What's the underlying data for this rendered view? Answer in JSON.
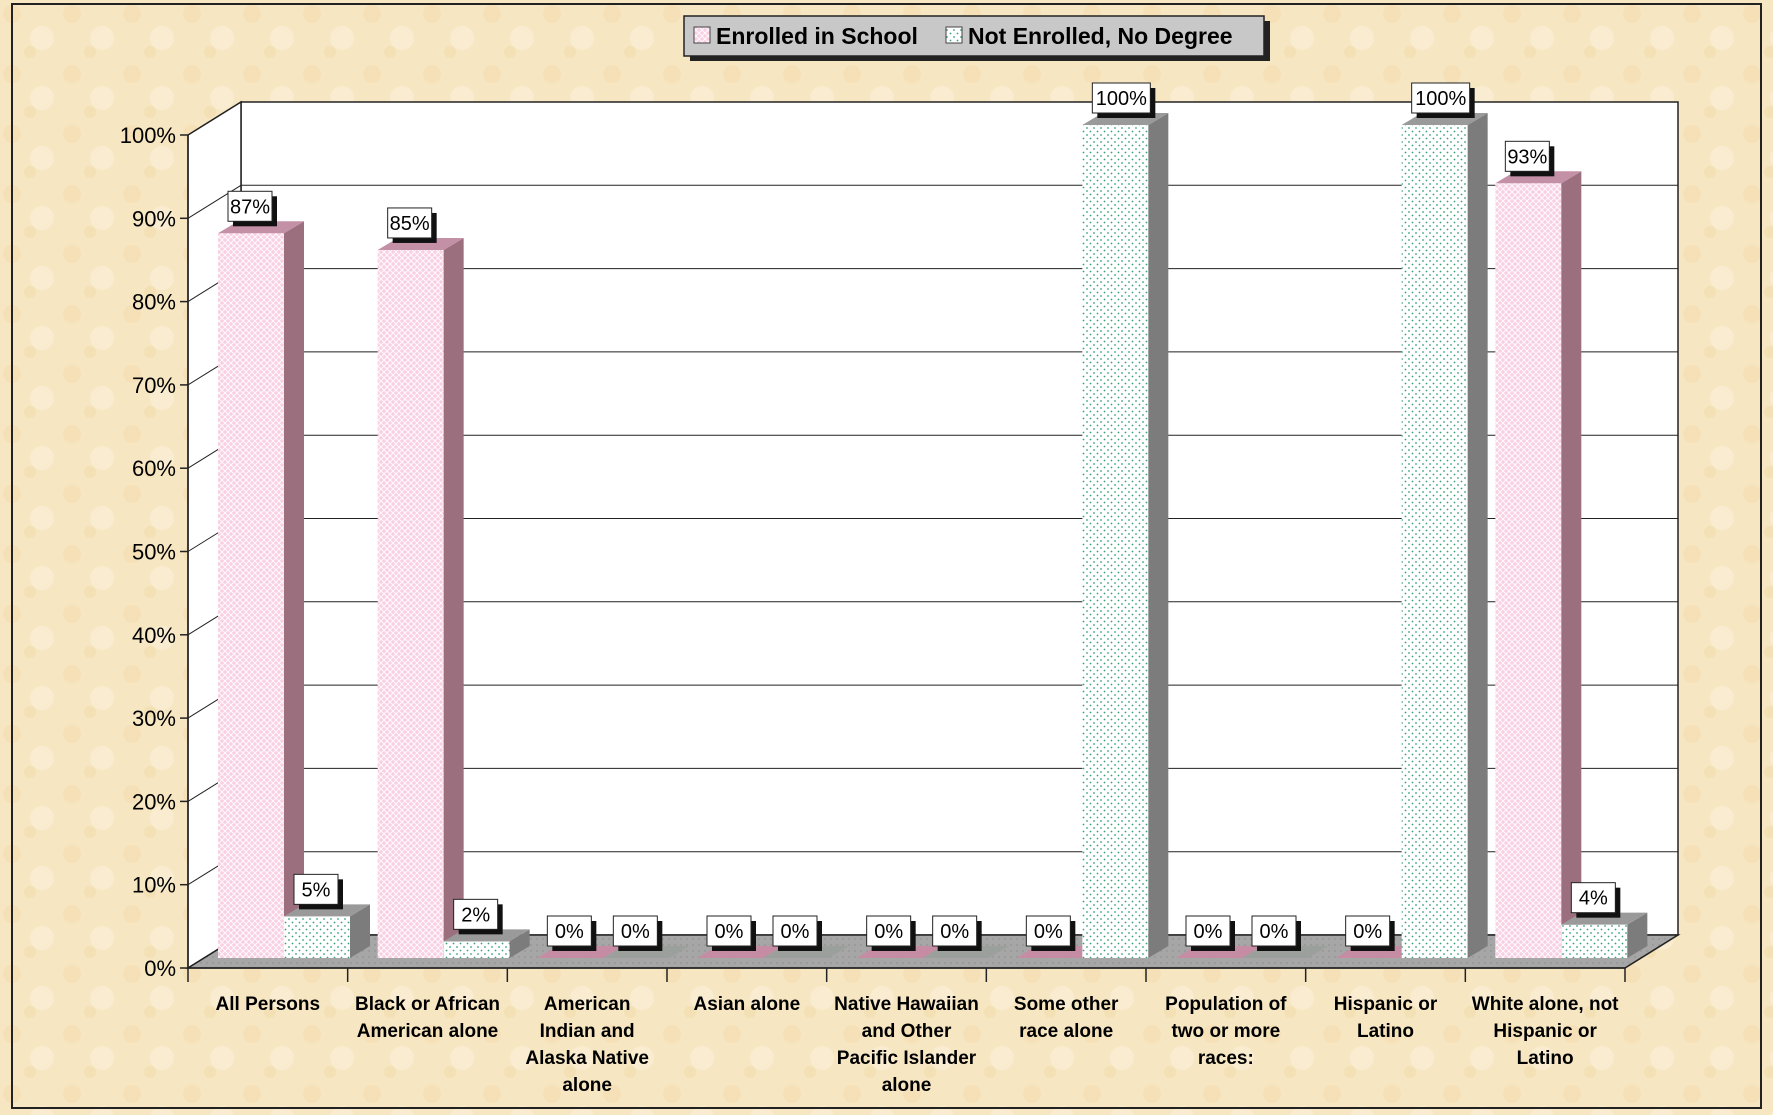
{
  "chart_data": {
    "type": "bar",
    "title": "",
    "xlabel": "",
    "ylabel": "",
    "ylim": [
      0,
      100
    ],
    "yticks": [
      0,
      10,
      20,
      30,
      40,
      50,
      60,
      70,
      80,
      90,
      100
    ],
    "ytick_labels": [
      "0%",
      "10%",
      "20%",
      "30%",
      "40%",
      "50%",
      "60%",
      "70%",
      "80%",
      "90%",
      "100%"
    ],
    "categories": [
      [
        "All Persons"
      ],
      [
        "Black or African",
        "American alone"
      ],
      [
        "American",
        "Indian and",
        "Alaska Native",
        "alone"
      ],
      [
        "Asian alone"
      ],
      [
        "Native Hawaiian",
        "and Other",
        "Pacific Islander",
        "alone"
      ],
      [
        "Some other",
        "race alone"
      ],
      [
        "Population of",
        "two or more",
        "races:"
      ],
      [
        "Hispanic or",
        "Latino"
      ],
      [
        "White alone, not",
        "Hispanic or",
        "Latino"
      ]
    ],
    "series": [
      {
        "name": "Enrolled in School",
        "values": [
          87,
          85,
          0,
          0,
          0,
          0,
          0,
          0,
          93
        ],
        "labels": [
          "87%",
          "85%",
          "0%",
          "0%",
          "0%",
          "0%",
          "0%",
          "0%",
          "93%"
        ],
        "color": "#f6c2dc"
      },
      {
        "name": "Not Enrolled, No Degree",
        "values": [
          5,
          2,
          0,
          0,
          0,
          100,
          0,
          100,
          4
        ],
        "labels": [
          "5%",
          "2%",
          "0%",
          "0%",
          "0%",
          "100%",
          "0%",
          "100%",
          "4%"
        ],
        "color": "#d8f0e6"
      }
    ],
    "legend_position": "top-center",
    "grid": true,
    "style": "3d-clustered-column"
  }
}
